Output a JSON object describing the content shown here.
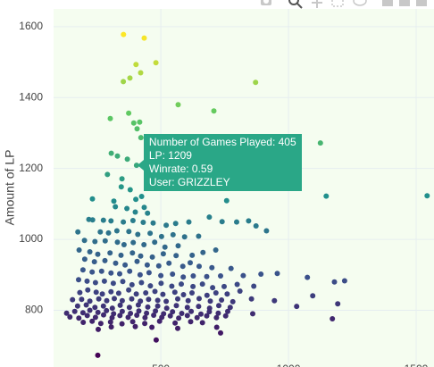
{
  "chart_data": {
    "type": "scatter",
    "title": "",
    "xlabel": "",
    "ylabel": "Amount of LP",
    "xlim": [
      80,
      1570
    ],
    "ylim": [
      640,
      1650
    ],
    "xticks": [
      500,
      1000,
      1500
    ],
    "xtick_labels": [
      "500",
      "1000",
      "1500"
    ],
    "yticks": [
      800,
      1000,
      1200,
      1400,
      1600
    ],
    "ytick_labels": [
      "800",
      "1000",
      "1200",
      "1400",
      "1600"
    ],
    "grid": true,
    "colorscale": [
      "#440154",
      "#3b528b",
      "#21918c",
      "#5ec962",
      "#fde725"
    ],
    "color_range": [
      670,
      1580
    ],
    "points": [
      [
        354,
        1578
      ],
      [
        435,
        1568
      ],
      [
        403,
        1493
      ],
      [
        481,
        1498
      ],
      [
        421,
        1470
      ],
      [
        379,
        1455
      ],
      [
        353,
        1445
      ],
      [
        871,
        1443
      ],
      [
        568,
        1380
      ],
      [
        708,
        1362
      ],
      [
        374,
        1356
      ],
      [
        417,
        1331
      ],
      [
        394,
        1328
      ],
      [
        302,
        1341
      ],
      [
        407,
        1312
      ],
      [
        422,
        1287
      ],
      [
        306,
        1243
      ],
      [
        330,
        1235
      ],
      [
        369,
        1226
      ],
      [
        405,
        1209
      ],
      [
        483,
        1200
      ],
      [
        1125,
        1272
      ],
      [
        1543,
        1123
      ],
      [
        291,
        1183
      ],
      [
        348,
        1171
      ],
      [
        449,
        1175
      ],
      [
        345,
        1148
      ],
      [
        380,
        1140
      ],
      [
        425,
        1121
      ],
      [
        232,
        1114
      ],
      [
        1148,
        1122
      ],
      [
        316,
        1108
      ],
      [
        402,
        1113
      ],
      [
        758,
        1109
      ],
      [
        322,
        1092
      ],
      [
        435,
        1090
      ],
      [
        367,
        1087
      ],
      [
        400,
        1077
      ],
      [
        448,
        1074
      ],
      [
        218,
        1056
      ],
      [
        233,
        1055
      ],
      [
        275,
        1054
      ],
      [
        305,
        1052
      ],
      [
        353,
        1049
      ],
      [
        391,
        1053
      ],
      [
        431,
        1048
      ],
      [
        470,
        1046
      ],
      [
        521,
        1040
      ],
      [
        558,
        1045
      ],
      [
        610,
        1049
      ],
      [
        690,
        1063
      ],
      [
        740,
        1050
      ],
      [
        797,
        1049
      ],
      [
        844,
        1052
      ],
      [
        873,
        1038
      ],
      [
        914,
        1024
      ],
      [
        175,
        1021
      ],
      [
        263,
        1021
      ],
      [
        295,
        1018
      ],
      [
        328,
        1024
      ],
      [
        375,
        1022
      ],
      [
        410,
        1014
      ],
      [
        458,
        1017
      ],
      [
        503,
        1008
      ],
      [
        548,
        1013
      ],
      [
        593,
        1007
      ],
      [
        648,
        1009
      ],
      [
        201,
        997
      ],
      [
        242,
        994
      ],
      [
        282,
        996
      ],
      [
        330,
        992
      ],
      [
        356,
        985
      ],
      [
        392,
        991
      ],
      [
        434,
        985
      ],
      [
        476,
        992
      ],
      [
        516,
        978
      ],
      [
        568,
        982
      ],
      [
        180,
        970
      ],
      [
        222,
        965
      ],
      [
        253,
        958
      ],
      [
        301,
        962
      ],
      [
        344,
        955
      ],
      [
        389,
        962
      ],
      [
        421,
        953
      ],
      [
        467,
        950
      ],
      [
        510,
        959
      ],
      [
        560,
        954
      ],
      [
        623,
        955
      ],
      [
        665,
        963
      ],
      [
        715,
        970
      ],
      [
        202,
        944
      ],
      [
        240,
        937
      ],
      [
        281,
        940
      ],
      [
        323,
        933
      ],
      [
        360,
        928
      ],
      [
        407,
        938
      ],
      [
        447,
        928
      ],
      [
        492,
        925
      ],
      [
        532,
        933
      ],
      [
        586,
        924
      ],
      [
        615,
        934
      ],
      [
        650,
        924
      ],
      [
        700,
        920
      ],
      [
        775,
        918
      ],
      [
        892,
        902
      ],
      [
        195,
        914
      ],
      [
        231,
        908
      ],
      [
        268,
        910
      ],
      [
        305,
        905
      ],
      [
        339,
        903
      ],
      [
        378,
        910
      ],
      [
        419,
        900
      ],
      [
        454,
        906
      ],
      [
        500,
        898
      ],
      [
        546,
        902
      ],
      [
        588,
        894
      ],
      [
        627,
        897
      ],
      [
        680,
        895
      ],
      [
        734,
        897
      ],
      [
        823,
        898
      ],
      [
        956,
        904
      ],
      [
        1074,
        893
      ],
      [
        1180,
        880
      ],
      [
        1220,
        883
      ],
      [
        178,
        886
      ],
      [
        211,
        882
      ],
      [
        244,
        878
      ],
      [
        279,
        882
      ],
      [
        314,
        876
      ],
      [
        351,
        881
      ],
      [
        387,
        872
      ],
      [
        424,
        878
      ],
      [
        459,
        869
      ],
      [
        501,
        876
      ],
      [
        543,
        868
      ],
      [
        580,
        874
      ],
      [
        626,
        867
      ],
      [
        663,
        874
      ],
      [
        703,
        864
      ],
      [
        748,
        867
      ],
      [
        799,
        873
      ],
      [
        864,
        868
      ],
      [
        183,
        850
      ],
      [
        214,
        857
      ],
      [
        247,
        851
      ],
      [
        271,
        846
      ],
      [
        305,
        852
      ],
      [
        335,
        848
      ],
      [
        374,
        857
      ],
      [
        404,
        846
      ],
      [
        441,
        849
      ],
      [
        477,
        853
      ],
      [
        508,
        845
      ],
      [
        555,
        851
      ],
      [
        589,
        844
      ],
      [
        622,
        849
      ],
      [
        681,
        842
      ],
      [
        716,
        849
      ],
      [
        760,
        846
      ],
      [
        810,
        854
      ],
      [
        1095,
        841
      ],
      [
        154,
        830
      ],
      [
        190,
        831
      ],
      [
        222,
        826
      ],
      [
        257,
        832
      ],
      [
        288,
        827
      ],
      [
        318,
        833
      ],
      [
        349,
        827
      ],
      [
        386,
        832
      ],
      [
        420,
        826
      ],
      [
        452,
        831
      ],
      [
        488,
        828
      ],
      [
        521,
        825
      ],
      [
        566,
        832
      ],
      [
        607,
        827
      ],
      [
        650,
        833
      ],
      [
        694,
        826
      ],
      [
        738,
        829
      ],
      [
        782,
        824
      ],
      [
        855,
        832
      ],
      [
        945,
        827
      ],
      [
        174,
        812
      ],
      [
        208,
        815
      ],
      [
        242,
        808
      ],
      [
        275,
        812
      ],
      [
        310,
        806
      ],
      [
        341,
        814
      ],
      [
        377,
        808
      ],
      [
        412,
        815
      ],
      [
        449,
        809
      ],
      [
        488,
        812
      ],
      [
        523,
        806
      ],
      [
        561,
        813
      ],
      [
        604,
        808
      ],
      [
        648,
        811
      ],
      [
        691,
        806
      ],
      [
        727,
        813
      ],
      [
        772,
        808
      ],
      [
        1032,
        811
      ],
      [
        1193,
        818
      ],
      [
        131,
        792
      ],
      [
        163,
        797
      ],
      [
        195,
        793
      ],
      [
        222,
        800
      ],
      [
        254,
        794
      ],
      [
        287,
        799
      ],
      [
        315,
        790
      ],
      [
        349,
        797
      ],
      [
        381,
        791
      ],
      [
        414,
        798
      ],
      [
        444,
        792
      ],
      [
        479,
        798
      ],
      [
        511,
        790
      ],
      [
        546,
        796
      ],
      [
        582,
        791
      ],
      [
        619,
        797
      ],
      [
        657,
        789
      ],
      [
        690,
        796
      ],
      [
        725,
        792
      ],
      [
        762,
        797
      ],
      [
        860,
        790
      ],
      [
        144,
        781
      ],
      [
        179,
        778
      ],
      [
        212,
        785
      ],
      [
        244,
        780
      ],
      [
        276,
        787
      ],
      [
        309,
        779
      ],
      [
        340,
        785
      ],
      [
        372,
        780
      ],
      [
        406,
        786
      ],
      [
        438,
        779
      ],
      [
        472,
        786
      ],
      [
        504,
        780
      ],
      [
        537,
        784
      ],
      [
        570,
        778
      ],
      [
        604,
        785
      ],
      [
        642,
        779
      ],
      [
        680,
        784
      ],
      [
        718,
        779
      ],
      [
        754,
        784
      ],
      [
        1172,
        776
      ],
      [
        196,
        766
      ],
      [
        231,
        769
      ],
      [
        265,
        763
      ],
      [
        303,
        767
      ],
      [
        348,
        762
      ],
      [
        390,
        768
      ],
      [
        437,
        763
      ],
      [
        495,
        769
      ],
      [
        556,
        764
      ],
      [
        617,
        768
      ],
      [
        663,
        765
      ],
      [
        255,
        746
      ],
      [
        306,
        753
      ],
      [
        400,
        754
      ],
      [
        465,
        752
      ],
      [
        566,
        749
      ],
      [
        719,
        752
      ],
      [
        734,
        736
      ],
      [
        482,
        716
      ],
      [
        253,
        673
      ]
    ]
  },
  "hover": {
    "lines": [
      "Number of Games Played: 405",
      "LP: 1209",
      "Winrate: 0.59",
      "User: GRIZZLEY"
    ],
    "anchor": [
      405,
      1209
    ]
  },
  "colors": {
    "plot_bg": "#f5fdf0",
    "grid": "#e6eef0",
    "tooltip": "#2aa787",
    "tick_text": "#444444"
  }
}
